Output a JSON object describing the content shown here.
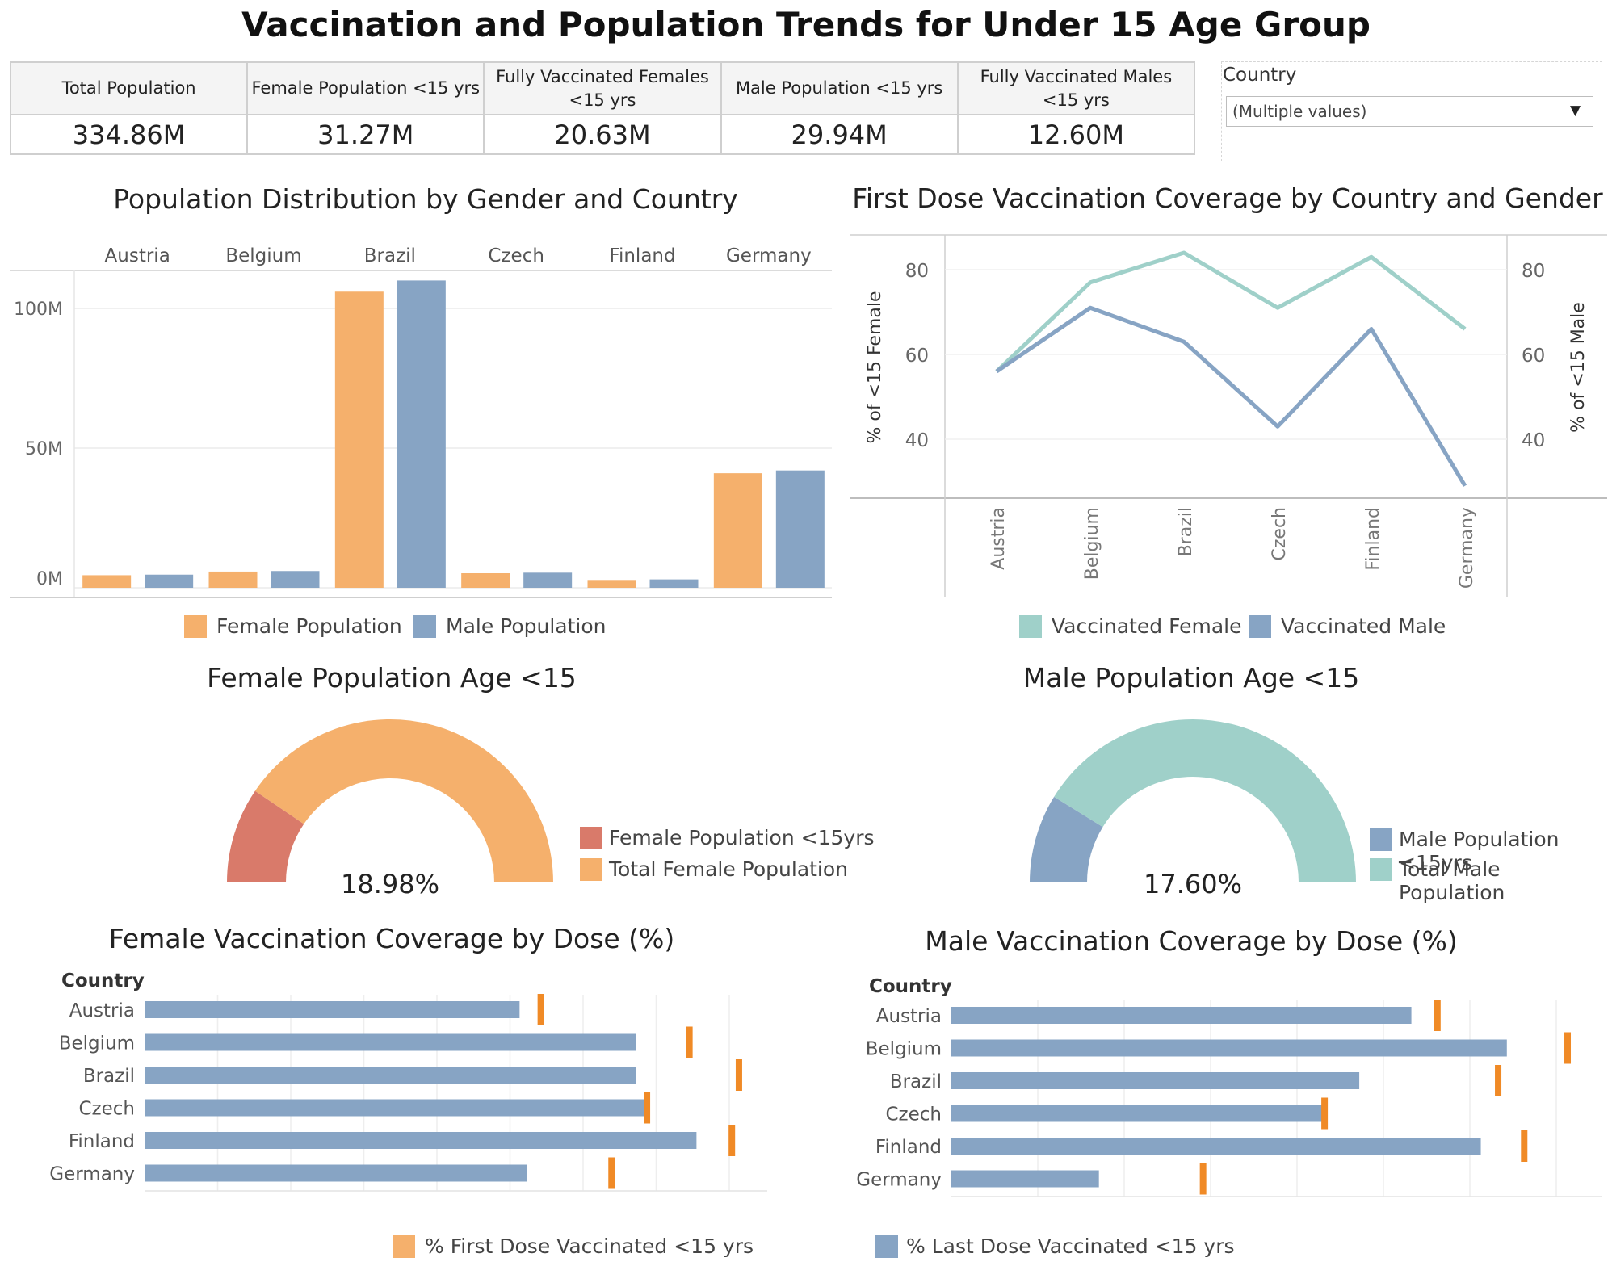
{
  "title": "Vaccination and Population Trends for Under 15 Age Group",
  "kpis": [
    {
      "label": "Total Population",
      "value": "334.86M"
    },
    {
      "label": "Female Population <15 yrs",
      "value": "31.27M"
    },
    {
      "label": "Fully Vaccinated Females <15 yrs",
      "value": "20.63M"
    },
    {
      "label": "Male Population <15 yrs",
      "value": "29.94M"
    },
    {
      "label": "Fully Vaccinated Males <15 yrs",
      "value": "12.60M"
    }
  ],
  "filter": {
    "label": "Country",
    "value": "(Multiple values)",
    "icon": "dropdown-arrow-icon"
  },
  "colors": {
    "orange": "#f5b06c",
    "blue": "#87a4c4",
    "teal": "#9fd0c9",
    "red": "#d97a6a",
    "accent": "#f08a26"
  },
  "chart_data": [
    {
      "type": "bar",
      "title": "Population Distribution by Gender and Country",
      "categories": [
        "Austria",
        "Belgium",
        "Brazil",
        "Czech",
        "Finland",
        "Germany"
      ],
      "series": [
        {
          "name": "Female Population",
          "values": [
            4.5,
            5.8,
            106,
            5.2,
            2.8,
            41
          ],
          "color": "#f5b06c"
        },
        {
          "name": "Male Population",
          "values": [
            4.7,
            6.0,
            110,
            5.4,
            3.0,
            42
          ],
          "color": "#87a4c4"
        }
      ],
      "yticks": [
        "0M",
        "50M",
        "100M"
      ],
      "ylim": [
        0,
        115
      ],
      "units": "millions",
      "legend": "bottom"
    },
    {
      "type": "line",
      "title": "First Dose Vaccination Coverage by Country and Gender",
      "categories": [
        "Austria",
        "Belgium",
        "Brazil",
        "Czech",
        "Finland",
        "Germany"
      ],
      "series": [
        {
          "name": "Vaccinated Female",
          "values": [
            56,
            77,
            84,
            71,
            83,
            66
          ],
          "color": "#9fd0c9",
          "axis": "left"
        },
        {
          "name": "Vaccinated Male",
          "values": [
            56,
            71,
            63,
            43,
            66,
            29
          ],
          "color": "#87a4c4",
          "axis": "right"
        }
      ],
      "ylabel_left": "% of <15 Female",
      "ylabel_right": "% of <15 Male",
      "yticks": [
        "40",
        "60",
        "80"
      ],
      "ylim": [
        26,
        87
      ],
      "legend": "bottom"
    },
    {
      "type": "pie",
      "title": "Female Population Age <15",
      "center_label": "18.98%",
      "slices": [
        {
          "name": "Female Population <15yrs",
          "value": 18.98,
          "color": "#d97a6a"
        },
        {
          "name": "Total Female Population",
          "value": 81.02,
          "color": "#f5b06c"
        }
      ],
      "gauge_fraction": 0.1898,
      "legend": "right"
    },
    {
      "type": "pie",
      "title": "Male Population Age <15",
      "center_label": "17.60%",
      "slices": [
        {
          "name": "Male Population <15yrs",
          "value": 17.6,
          "color": "#87a4c4"
        },
        {
          "name": "Total Male Population",
          "value": 82.4,
          "color": "#9fd0c9"
        }
      ],
      "gauge_fraction": 0.176,
      "legend": "right"
    },
    {
      "type": "bar",
      "title": "Female Vaccination Coverage by Dose (%)",
      "row_header": "Country",
      "categories": [
        "Austria",
        "Belgium",
        "Brazil",
        "Czech",
        "Finland",
        "Germany"
      ],
      "series": [
        {
          "name": "% Last Dose Vaccinated <15 yrs",
          "values": [
            53,
            69.5,
            69.5,
            71,
            78,
            54
          ],
          "color": "#87a4c4"
        },
        {
          "name": "% First Dose Vaccinated <15 yrs",
          "values": [
            56,
            77,
            84,
            71,
            83,
            66
          ],
          "color": "#f08a26",
          "marker": "reference-line"
        }
      ],
      "xlim": [
        0,
        88
      ],
      "legend": "bottom"
    },
    {
      "type": "bar",
      "title": "Male Vaccination Coverage by Dose (%)",
      "row_header": "Country",
      "categories": [
        "Austria",
        "Belgium",
        "Brazil",
        "Czech",
        "Finland",
        "Germany"
      ],
      "series": [
        {
          "name": "% Last Dose Vaccinated <15 yrs",
          "values": [
            53,
            64,
            47,
            43,
            61,
            17
          ],
          "color": "#87a4c4"
        },
        {
          "name": "% First Dose Vaccinated <15 yrs",
          "values": [
            56,
            71,
            63,
            43,
            66,
            29
          ],
          "color": "#f08a26",
          "marker": "reference-line"
        }
      ],
      "xlim": [
        0,
        75
      ],
      "legend": "bottom"
    }
  ]
}
